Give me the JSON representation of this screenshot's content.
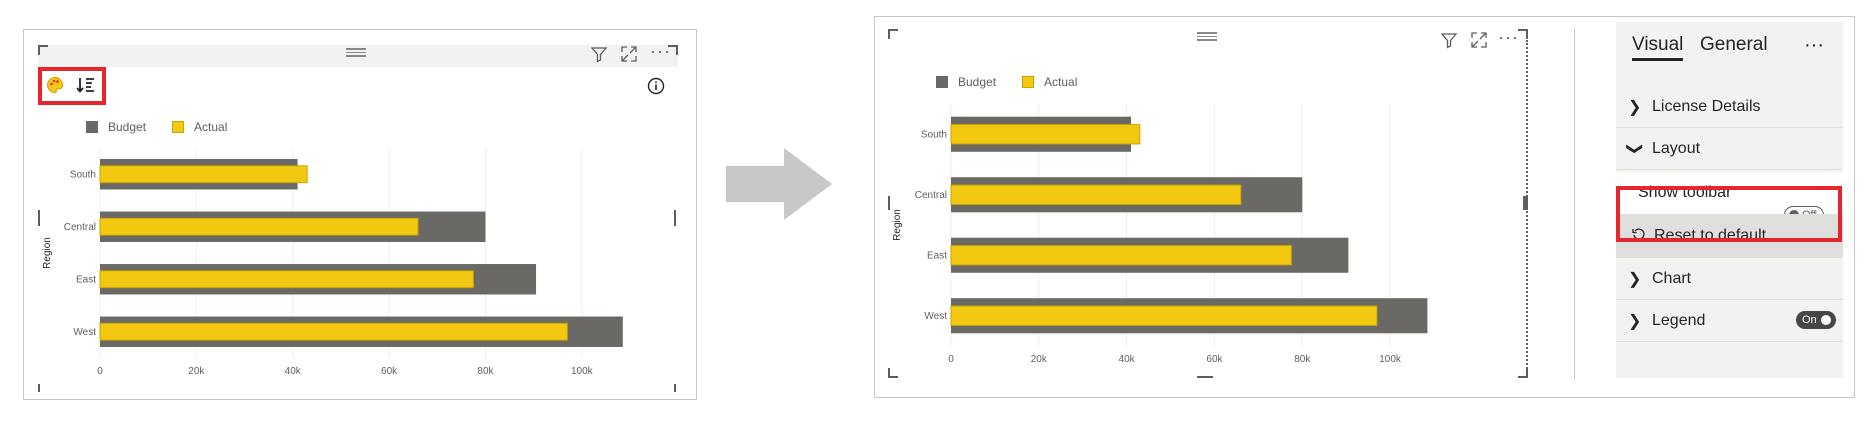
{
  "left_visual": {
    "legend": [
      {
        "label": "Budget",
        "color": "#6b6965"
      },
      {
        "label": "Actual",
        "color": "#f2c811"
      }
    ],
    "toolbar_icons": [
      "palette-icon",
      "sort-icon"
    ],
    "info_icon": "info-icon"
  },
  "right_visual": {
    "legend": [
      {
        "label": "Budget",
        "color": "#6b6965"
      },
      {
        "label": "Actual",
        "color": "#f2c811"
      }
    ]
  },
  "chart_data": [
    {
      "type": "bar",
      "orientation": "horizontal",
      "categories": [
        "South",
        "Central",
        "East",
        "West"
      ],
      "series": [
        {
          "name": "Budget",
          "values": [
            41000,
            80000,
            90500,
            108500
          ]
        },
        {
          "name": "Actual",
          "values": [
            43000,
            66000,
            77500,
            97000
          ]
        }
      ],
      "ylabel": "Region",
      "xticks": [
        "0",
        "20k",
        "40k",
        "60k",
        "80k",
        "100k"
      ],
      "xlim": [
        0,
        110000
      ],
      "grid": true,
      "legend_position": "top-left"
    },
    {
      "type": "bar",
      "orientation": "horizontal",
      "categories": [
        "South",
        "Central",
        "East",
        "West"
      ],
      "series": [
        {
          "name": "Budget",
          "values": [
            41000,
            80000,
            90500,
            108500
          ]
        },
        {
          "name": "Actual",
          "values": [
            43000,
            66000,
            77500,
            97000
          ]
        }
      ],
      "ylabel": "Region",
      "xticks": [
        "0",
        "20k",
        "40k",
        "60k",
        "80k",
        "100k"
      ],
      "xlim": [
        0,
        110000
      ],
      "grid": true,
      "legend_position": "top-left"
    }
  ],
  "format_pane": {
    "tabs": [
      "Visual",
      "General"
    ],
    "more_label": "···",
    "rows": {
      "license": "License Details",
      "layout": "Layout",
      "show_toolbar": "Show toolbar",
      "show_toolbar_state": "Off",
      "reset": "Reset to default",
      "chart": "Chart",
      "legend": "Legend",
      "legend_state": "On"
    }
  },
  "colors": {
    "budget": "#6b6965",
    "actual": "#f2c811",
    "highlight": "#e5262d",
    "arrow": "#c8c8c8"
  }
}
